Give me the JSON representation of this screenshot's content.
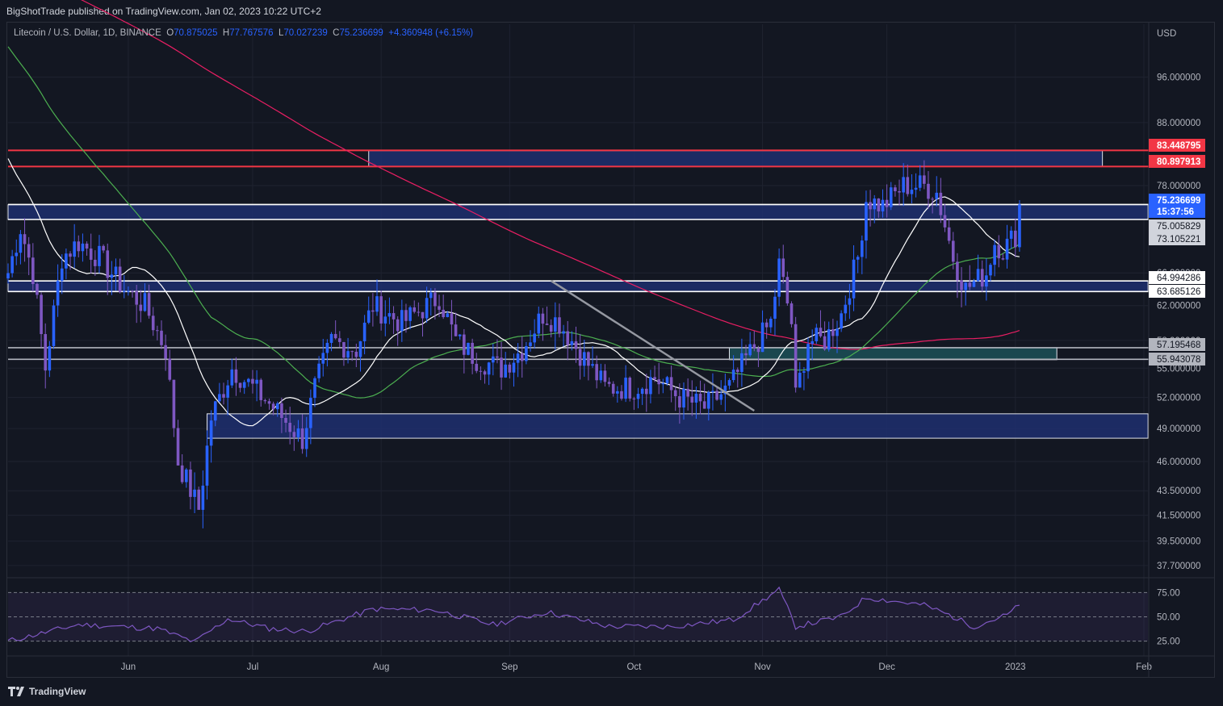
{
  "header": {
    "publish_line": "BigShotTrade published on TradingView.com, Jan 02, 2023 10:22 UTC+2"
  },
  "legend": {
    "symbol": "Litecoin / U.S. Dollar, 1D, BINANCE",
    "o_label": "O",
    "o_value": "70.875025",
    "h_label": "H",
    "h_value": "77.767576",
    "l_label": "L",
    "l_value": "70.027239",
    "c_label": "C",
    "c_value": "75.236699",
    "change": "+4.360948 (+6.15%)"
  },
  "footer": {
    "brand": "TradingView"
  },
  "colors": {
    "up": "#2962ff",
    "down": "#7e57c2",
    "zone": "#1e2f6e",
    "teal_zone": "#1a4a52",
    "ma_fast": "#ffffff",
    "ma_mid": "#4caf50",
    "ma_slow": "#e91e63",
    "resistance": "#f23645",
    "rsi": "#7e57c2"
  },
  "chart_data": {
    "type": "candlestick",
    "price_axis": {
      "currency": "USD",
      "ticks": [
        "96.000000",
        "88.000000",
        "78.000000",
        "66.000000",
        "62.000000",
        "58.000000",
        "55.000000",
        "52.000000",
        "49.000000",
        "46.000000",
        "43.500000",
        "41.500000",
        "39.500000",
        "37.700000"
      ],
      "scale": "log",
      "range": [
        37,
        103
      ]
    },
    "time_axis": {
      "ticks": [
        "Jun",
        "Jul",
        "Aug",
        "Sep",
        "Oct",
        "Nov",
        "Dec",
        "2023",
        "Feb"
      ]
    },
    "price_labels": [
      {
        "text": "83.448795",
        "style": "red"
      },
      {
        "text": "80.897913",
        "style": "red"
      },
      {
        "text": "75.236699",
        "style": "blue"
      },
      {
        "text": "15:37:56",
        "style": "blue"
      },
      {
        "text": "75.005829",
        "style": "light"
      },
      {
        "text": "73.105221",
        "style": "light"
      },
      {
        "text": "64.994286",
        "style": "white"
      },
      {
        "text": "63.685126",
        "style": "white"
      },
      {
        "text": "57.195468",
        "style": "grey"
      },
      {
        "text": "55.943078",
        "style": "grey"
      }
    ],
    "horizontal_lines": [
      {
        "price": 83.448795,
        "color": "red"
      },
      {
        "price": 80.897913,
        "color": "red"
      },
      {
        "price": 75.236699,
        "color": "white"
      },
      {
        "price": 73.105221,
        "color": "white"
      },
      {
        "price": 64.994286,
        "color": "white"
      },
      {
        "price": 63.685126,
        "color": "white"
      },
      {
        "price": 57.195468,
        "color": "grey"
      },
      {
        "price": 55.943078,
        "color": "grey"
      }
    ],
    "zones": [
      {
        "from_date": "2022-07-29",
        "to_date": "2023-01-22",
        "low": 80.9,
        "high": 83.4,
        "kind": "blue"
      },
      {
        "from_date": "2022-05-03",
        "to_date": "2023-02-02",
        "low": 73.1,
        "high": 75.2,
        "kind": "blue"
      },
      {
        "from_date": "2022-05-03",
        "to_date": "2023-02-02",
        "low": 63.7,
        "high": 65.0,
        "kind": "blue"
      },
      {
        "from_date": "2022-10-24",
        "to_date": "2023-01-11",
        "low": 55.9,
        "high": 57.2,
        "kind": "teal"
      },
      {
        "from_date": "2022-06-20",
        "to_date": "2023-02-02",
        "low": 48.1,
        "high": 50.4,
        "kind": "blue"
      }
    ],
    "trendline": {
      "from": {
        "date": "2022-09-11",
        "price": 65.0
      },
      "to": {
        "date": "2022-10-30",
        "price": 50.7
      }
    },
    "anchor_closes": [
      {
        "date": "2022-05-03",
        "price": 66.0
      },
      {
        "date": "2022-05-06",
        "price": 72.0
      },
      {
        "date": "2022-05-09",
        "price": 66.0
      },
      {
        "date": "2022-05-12",
        "price": 55.0
      },
      {
        "date": "2022-05-16",
        "price": 68.0
      },
      {
        "date": "2022-05-20",
        "price": 70.0
      },
      {
        "date": "2022-05-25",
        "price": 68.0
      },
      {
        "date": "2022-05-31",
        "price": 64.0
      },
      {
        "date": "2022-06-05",
        "price": 62.0
      },
      {
        "date": "2022-06-10",
        "price": 57.0
      },
      {
        "date": "2022-06-13",
        "price": 46.0
      },
      {
        "date": "2022-06-18",
        "price": 42.0
      },
      {
        "date": "2022-06-21",
        "price": 50.0
      },
      {
        "date": "2022-06-26",
        "price": 55.0
      },
      {
        "date": "2022-07-01",
        "price": 53.0
      },
      {
        "date": "2022-07-06",
        "price": 51.0
      },
      {
        "date": "2022-07-13",
        "price": 48.0
      },
      {
        "date": "2022-07-16",
        "price": 53.0
      },
      {
        "date": "2022-07-20",
        "price": 58.0
      },
      {
        "date": "2022-07-26",
        "price": 57.0
      },
      {
        "date": "2022-07-30",
        "price": 62.0
      },
      {
        "date": "2022-08-06",
        "price": 60.0
      },
      {
        "date": "2022-08-12",
        "price": 62.0
      },
      {
        "date": "2022-08-15",
        "price": 63.0
      },
      {
        "date": "2022-08-19",
        "price": 58.0
      },
      {
        "date": "2022-08-24",
        "price": 56.0
      },
      {
        "date": "2022-08-30",
        "price": 55.0
      },
      {
        "date": "2022-09-04",
        "price": 57.0
      },
      {
        "date": "2022-09-09",
        "price": 61.0
      },
      {
        "date": "2022-09-13",
        "price": 60.0
      },
      {
        "date": "2022-09-19",
        "price": 56.0
      },
      {
        "date": "2022-09-24",
        "price": 53.0
      },
      {
        "date": "2022-10-01",
        "price": 53.0
      },
      {
        "date": "2022-10-06",
        "price": 54.0
      },
      {
        "date": "2022-10-12",
        "price": 52.0
      },
      {
        "date": "2022-10-18",
        "price": 51.0
      },
      {
        "date": "2022-10-24",
        "price": 53.0
      },
      {
        "date": "2022-10-28",
        "price": 56.0
      },
      {
        "date": "2022-11-03",
        "price": 60.0
      },
      {
        "date": "2022-11-05",
        "price": 67.0
      },
      {
        "date": "2022-11-08",
        "price": 60.0
      },
      {
        "date": "2022-11-09",
        "price": 52.0
      },
      {
        "date": "2022-11-12",
        "price": 58.0
      },
      {
        "date": "2022-11-16",
        "price": 58.0
      },
      {
        "date": "2022-11-20",
        "price": 61.0
      },
      {
        "date": "2022-11-24",
        "price": 68.0
      },
      {
        "date": "2022-11-26",
        "price": 76.0
      },
      {
        "date": "2022-11-30",
        "price": 75.0
      },
      {
        "date": "2022-12-05",
        "price": 78.0
      },
      {
        "date": "2022-12-10",
        "price": 78.0
      },
      {
        "date": "2022-12-13",
        "price": 77.0
      },
      {
        "date": "2022-12-17",
        "price": 68.0
      },
      {
        "date": "2022-12-20",
        "price": 64.0
      },
      {
        "date": "2022-12-25",
        "price": 66.0
      },
      {
        "date": "2022-12-27",
        "price": 70.0
      },
      {
        "date": "2022-12-29",
        "price": 69.0
      },
      {
        "date": "2023-01-01",
        "price": 71.0
      },
      {
        "date": "2023-01-02",
        "price": 75.24
      }
    ],
    "rsi": {
      "levels": [
        "75.00",
        "50.00",
        "25.00"
      ],
      "anchors": [
        {
          "date": "2022-05-03",
          "value": 25
        },
        {
          "date": "2022-05-20",
          "value": 42
        },
        {
          "date": "2022-06-08",
          "value": 38
        },
        {
          "date": "2022-06-17",
          "value": 24
        },
        {
          "date": "2022-06-25",
          "value": 48
        },
        {
          "date": "2022-07-05",
          "value": 38
        },
        {
          "date": "2022-07-14",
          "value": 35
        },
        {
          "date": "2022-07-30",
          "value": 58
        },
        {
          "date": "2022-08-14",
          "value": 57
        },
        {
          "date": "2022-08-28",
          "value": 42
        },
        {
          "date": "2022-09-10",
          "value": 55
        },
        {
          "date": "2022-09-25",
          "value": 40
        },
        {
          "date": "2022-10-10",
          "value": 40
        },
        {
          "date": "2022-10-25",
          "value": 47
        },
        {
          "date": "2022-11-05",
          "value": 78
        },
        {
          "date": "2022-11-09",
          "value": 40
        },
        {
          "date": "2022-11-20",
          "value": 50
        },
        {
          "date": "2022-11-26",
          "value": 70
        },
        {
          "date": "2022-12-10",
          "value": 62
        },
        {
          "date": "2022-12-16",
          "value": 52
        },
        {
          "date": "2022-12-22",
          "value": 40
        },
        {
          "date": "2022-12-30",
          "value": 52
        },
        {
          "date": "2023-01-02",
          "value": 62
        }
      ]
    }
  }
}
